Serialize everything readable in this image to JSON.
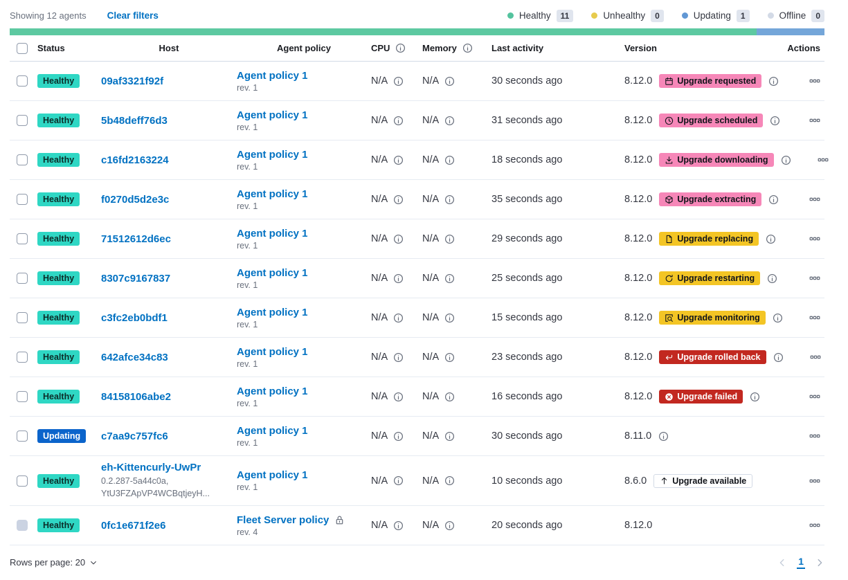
{
  "toolbar": {
    "showing_text": "Showing 12 agents",
    "clear_filters_label": "Clear filters"
  },
  "legend": {
    "items": [
      {
        "label": "Healthy",
        "count": "11",
        "color": "#54C39E"
      },
      {
        "label": "Unhealthy",
        "count": "0",
        "color": "#E7CB4D"
      },
      {
        "label": "Updating",
        "count": "1",
        "color": "#6197D4"
      },
      {
        "label": "Offline",
        "count": "0",
        "color": "#D3DAE6"
      }
    ]
  },
  "status_bar": {
    "segments": [
      {
        "name": "healthy",
        "fraction": 0.9167,
        "color": "#5DC9A1"
      },
      {
        "name": "updating",
        "fraction": 0.0833,
        "color": "#74A6D9"
      }
    ]
  },
  "table": {
    "headers": {
      "status": "Status",
      "host": "Host",
      "policy": "Agent policy",
      "cpu": "CPU",
      "memory": "Memory",
      "last_activity": "Last activity",
      "version": "Version",
      "actions": "Actions"
    },
    "rows": [
      {
        "status_label": "Healthy",
        "status_type": "healthy",
        "host": "09af3321f92f",
        "host_sub": null,
        "policy": "Agent policy 1",
        "policy_locked": false,
        "revision": "rev. 1",
        "cpu": "N/A",
        "memory": "N/A",
        "last_activity": "30 seconds ago",
        "version": "8.12.0",
        "upgrade": {
          "label": "Upgrade requested",
          "type": "pink",
          "icon": "calendar-icon"
        },
        "version_info": true,
        "checkbox_disabled": false
      },
      {
        "status_label": "Healthy",
        "status_type": "healthy",
        "host": "5b48deff76d3",
        "host_sub": null,
        "policy": "Agent policy 1",
        "policy_locked": false,
        "revision": "rev. 1",
        "cpu": "N/A",
        "memory": "N/A",
        "last_activity": "31 seconds ago",
        "version": "8.12.0",
        "upgrade": {
          "label": "Upgrade scheduled",
          "type": "pink",
          "icon": "clock-icon"
        },
        "version_info": true,
        "checkbox_disabled": false
      },
      {
        "status_label": "Healthy",
        "status_type": "healthy",
        "host": "c16fd2163224",
        "host_sub": null,
        "policy": "Agent policy 1",
        "policy_locked": false,
        "revision": "rev. 1",
        "cpu": "N/A",
        "memory": "N/A",
        "last_activity": "18 seconds ago",
        "version": "8.12.0",
        "upgrade": {
          "label": "Upgrade downloading",
          "type": "pink",
          "icon": "download-icon"
        },
        "version_info": true,
        "checkbox_disabled": false
      },
      {
        "status_label": "Healthy",
        "status_type": "healthy",
        "host": "f0270d5d2e3c",
        "host_sub": null,
        "policy": "Agent policy 1",
        "policy_locked": false,
        "revision": "rev. 1",
        "cpu": "N/A",
        "memory": "N/A",
        "last_activity": "35 seconds ago",
        "version": "8.12.0",
        "upgrade": {
          "label": "Upgrade extracting",
          "type": "pink",
          "icon": "package-icon"
        },
        "version_info": true,
        "checkbox_disabled": false
      },
      {
        "status_label": "Healthy",
        "status_type": "healthy",
        "host": "71512612d6ec",
        "host_sub": null,
        "policy": "Agent policy 1",
        "policy_locked": false,
        "revision": "rev. 1",
        "cpu": "N/A",
        "memory": "N/A",
        "last_activity": "29 seconds ago",
        "version": "8.12.0",
        "upgrade": {
          "label": "Upgrade replacing",
          "type": "yellow",
          "icon": "document-icon"
        },
        "version_info": true,
        "checkbox_disabled": false
      },
      {
        "status_label": "Healthy",
        "status_type": "healthy",
        "host": "8307c9167837",
        "host_sub": null,
        "policy": "Agent policy 1",
        "policy_locked": false,
        "revision": "rev. 1",
        "cpu": "N/A",
        "memory": "N/A",
        "last_activity": "25 seconds ago",
        "version": "8.12.0",
        "upgrade": {
          "label": "Upgrade restarting",
          "type": "yellow",
          "icon": "refresh-icon"
        },
        "version_info": true,
        "checkbox_disabled": false
      },
      {
        "status_label": "Healthy",
        "status_type": "healthy",
        "host": "c3fc2eb0bdf1",
        "host_sub": null,
        "policy": "Agent policy 1",
        "policy_locked": false,
        "revision": "rev. 1",
        "cpu": "N/A",
        "memory": "N/A",
        "last_activity": "15 seconds ago",
        "version": "8.12.0",
        "upgrade": {
          "label": "Upgrade monitoring",
          "type": "yellow",
          "icon": "inspect-icon"
        },
        "version_info": true,
        "checkbox_disabled": false
      },
      {
        "status_label": "Healthy",
        "status_type": "healthy",
        "host": "642afce34c83",
        "host_sub": null,
        "policy": "Agent policy 1",
        "policy_locked": false,
        "revision": "rev. 1",
        "cpu": "N/A",
        "memory": "N/A",
        "last_activity": "23 seconds ago",
        "version": "8.12.0",
        "upgrade": {
          "label": "Upgrade rolled back",
          "type": "red",
          "icon": "return-icon"
        },
        "version_info": true,
        "checkbox_disabled": false
      },
      {
        "status_label": "Healthy",
        "status_type": "healthy",
        "host": "84158106abe2",
        "host_sub": null,
        "policy": "Agent policy 1",
        "policy_locked": false,
        "revision": "rev. 1",
        "cpu": "N/A",
        "memory": "N/A",
        "last_activity": "16 seconds ago",
        "version": "8.12.0",
        "upgrade": {
          "label": "Upgrade failed",
          "type": "red",
          "icon": "cross-circle-icon"
        },
        "version_info": true,
        "checkbox_disabled": false
      },
      {
        "status_label": "Updating",
        "status_type": "updating",
        "host": "c7aa9c757fc6",
        "host_sub": null,
        "policy": "Agent policy 1",
        "policy_locked": false,
        "revision": "rev. 1",
        "cpu": "N/A",
        "memory": "N/A",
        "last_activity": "30 seconds ago",
        "version": "8.11.0",
        "upgrade": null,
        "version_info": true,
        "checkbox_disabled": false
      },
      {
        "status_label": "Healthy",
        "status_type": "healthy",
        "host": "eh-Kittencurly-UwPr",
        "host_sub": "0.2.287-5a44c0a,\nYtU3FZApVP4WCBqtjeyH...",
        "policy": "Agent policy 1",
        "policy_locked": false,
        "revision": "rev. 1",
        "cpu": "N/A",
        "memory": "N/A",
        "last_activity": "10 seconds ago",
        "version": "8.6.0",
        "upgrade": {
          "label": "Upgrade available",
          "type": "hollow",
          "icon": "arrow-up-icon"
        },
        "version_info": false,
        "checkbox_disabled": false
      },
      {
        "status_label": "Healthy",
        "status_type": "healthy",
        "host": "0fc1e671f2e6",
        "host_sub": null,
        "policy": "Fleet Server policy",
        "policy_locked": true,
        "revision": "rev. 4",
        "cpu": "N/A",
        "memory": "N/A",
        "last_activity": "20 seconds ago",
        "version": "8.12.0",
        "upgrade": null,
        "version_info": false,
        "checkbox_disabled": true
      }
    ]
  },
  "footer": {
    "rows_per_page_label": "Rows per page: 20",
    "page": "1"
  },
  "colors": {
    "healthy_badge": "#2FD7C4",
    "updating_badge": "#0B64CB",
    "pink_badge": "#F687B8",
    "yellow_badge": "#F3C525",
    "red_badge": "#C22820",
    "link": "#0071C2"
  }
}
